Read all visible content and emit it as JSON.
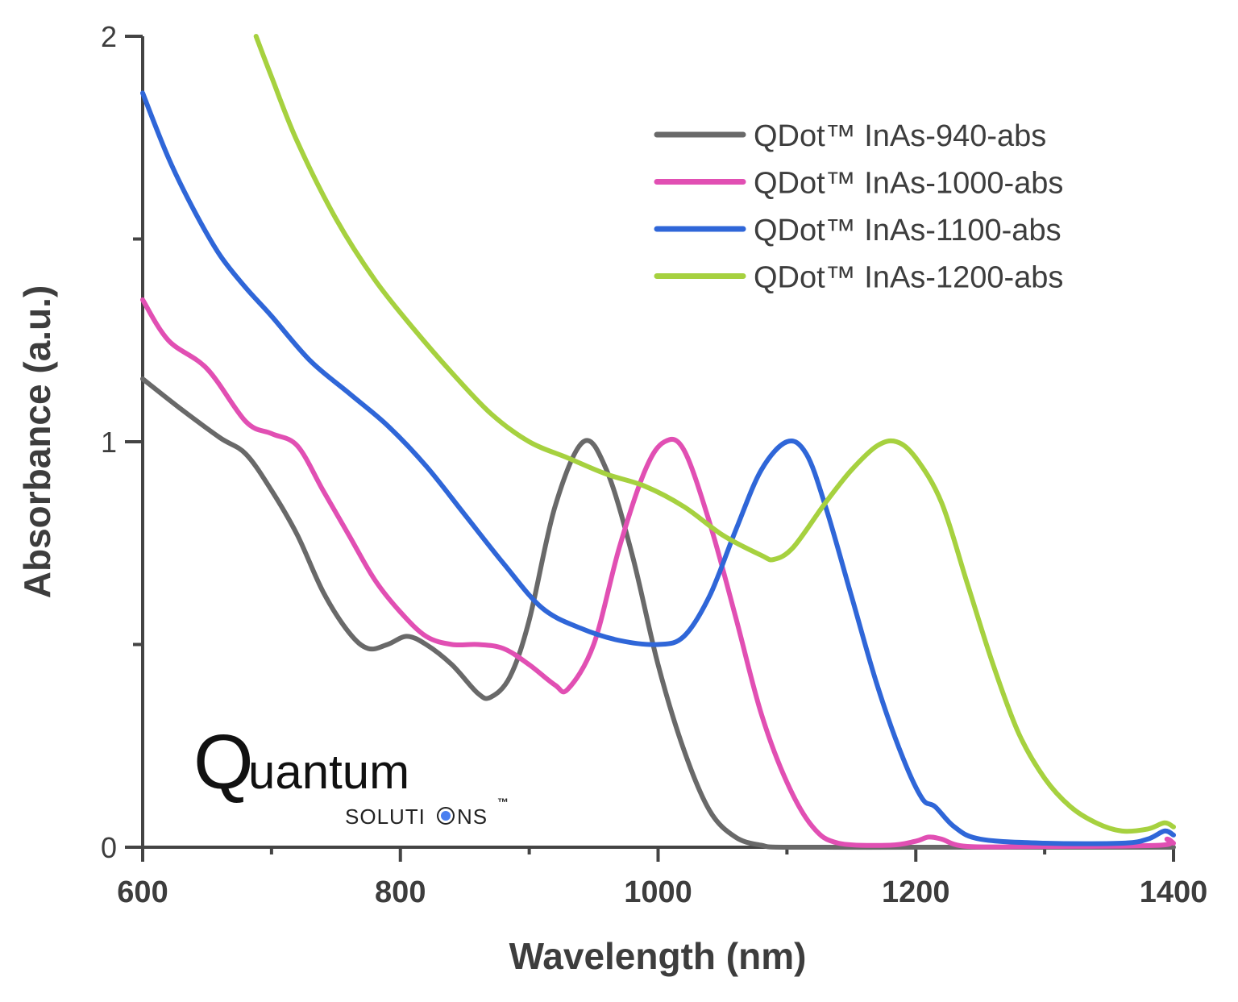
{
  "chart_data": {
    "type": "line",
    "title": "",
    "xlabel": "Wavelength (nm)",
    "ylabel": "Absorbance (a.u.)",
    "xlim": [
      600,
      1400
    ],
    "ylim": [
      0,
      2
    ],
    "x_ticks": [
      600,
      800,
      1000,
      1200,
      1400
    ],
    "x_tick_labels": [
      "600",
      "800",
      "1000",
      "1200",
      "1400"
    ],
    "x_minor_ticks": [
      700,
      900,
      1100,
      1300
    ],
    "y_ticks": [
      0,
      1,
      2
    ],
    "y_tick_labels": [
      "0",
      "1",
      "2"
    ],
    "y_minor_ticks": [
      0.5,
      1.5
    ],
    "grid": false,
    "legend_position": "top-right",
    "series": [
      {
        "name": "QDot™ InAs-940-abs",
        "color": "#696969",
        "x": [
          600,
          630,
          660,
          680,
          700,
          720,
          740,
          760,
          775,
          790,
          805,
          820,
          840,
          860,
          870,
          885,
          900,
          920,
          942,
          960,
          980,
          1000,
          1020,
          1040,
          1060,
          1080,
          1100,
          1200,
          1300,
          1400
        ],
        "y": [
          1.155,
          1.08,
          1.01,
          0.97,
          0.88,
          0.77,
          0.63,
          0.53,
          0.49,
          0.5,
          0.52,
          0.5,
          0.45,
          0.38,
          0.37,
          0.42,
          0.56,
          0.84,
          1.0,
          0.93,
          0.72,
          0.45,
          0.24,
          0.09,
          0.025,
          0.005,
          0.0,
          0.0,
          0.0,
          0.0
        ]
      },
      {
        "name": "QDot™ InAs-1000-abs",
        "color": "#e14fb3",
        "x": [
          600,
          620,
          650,
          680,
          700,
          720,
          740,
          760,
          780,
          800,
          820,
          840,
          860,
          880,
          900,
          920,
          930,
          950,
          970,
          990,
          1005,
          1020,
          1040,
          1060,
          1080,
          1100,
          1120,
          1140,
          1180,
          1200,
          1210,
          1220,
          1240,
          1300,
          1390,
          1395,
          1400
        ],
        "y": [
          1.35,
          1.25,
          1.18,
          1.05,
          1.02,
          0.99,
          0.88,
          0.77,
          0.66,
          0.58,
          0.52,
          0.5,
          0.5,
          0.49,
          0.45,
          0.4,
          0.39,
          0.5,
          0.74,
          0.93,
          1.0,
          0.98,
          0.8,
          0.57,
          0.33,
          0.16,
          0.05,
          0.01,
          0.005,
          0.015,
          0.025,
          0.02,
          0.002,
          0.002,
          0.005,
          0.02,
          0.01
        ]
      },
      {
        "name": "QDot™ InAs-1100-abs",
        "color": "#2f66d8",
        "x": [
          600,
          620,
          640,
          660,
          680,
          700,
          730,
          760,
          790,
          820,
          850,
          880,
          910,
          940,
          970,
          1000,
          1020,
          1040,
          1060,
          1080,
          1100,
          1115,
          1130,
          1150,
          1170,
          1190,
          1205,
          1215,
          1230,
          1250,
          1300,
          1360,
          1380,
          1393,
          1400
        ],
        "y": [
          1.86,
          1.7,
          1.57,
          1.46,
          1.38,
          1.31,
          1.2,
          1.12,
          1.04,
          0.94,
          0.82,
          0.7,
          0.59,
          0.54,
          0.51,
          0.5,
          0.52,
          0.62,
          0.78,
          0.93,
          1.0,
          0.97,
          0.84,
          0.62,
          0.4,
          0.22,
          0.12,
          0.1,
          0.05,
          0.02,
          0.01,
          0.01,
          0.02,
          0.04,
          0.03
        ]
      },
      {
        "name": "QDot™ InAs-1200-abs",
        "color": "#a6d13f",
        "x": [
          688,
          700,
          720,
          750,
          780,
          810,
          840,
          870,
          900,
          930,
          960,
          990,
          1020,
          1050,
          1080,
          1090,
          1105,
          1130,
          1150,
          1170,
          1185,
          1200,
          1220,
          1240,
          1260,
          1280,
          1300,
          1320,
          1340,
          1360,
          1380,
          1393,
          1400
        ],
        "y": [
          2.0,
          1.9,
          1.74,
          1.55,
          1.4,
          1.28,
          1.17,
          1.07,
          1.0,
          0.96,
          0.92,
          0.89,
          0.84,
          0.77,
          0.72,
          0.71,
          0.74,
          0.85,
          0.93,
          0.99,
          1.0,
          0.96,
          0.85,
          0.65,
          0.45,
          0.28,
          0.17,
          0.1,
          0.06,
          0.04,
          0.045,
          0.06,
          0.05
        ]
      }
    ]
  },
  "logo": {
    "big_letter": "Q",
    "word": "uantum",
    "sub_left": "SOLUTI",
    "sub_right": "NS",
    "tm": "™",
    "dot_color": "#4a7ff0"
  },
  "axis_color": "#444444"
}
